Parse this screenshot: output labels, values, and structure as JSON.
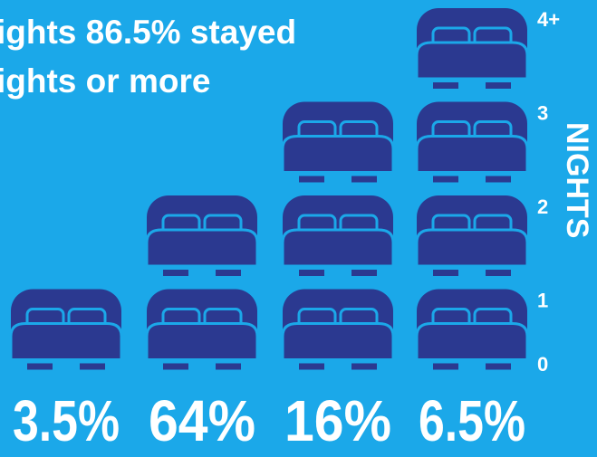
{
  "chart_data": {
    "type": "pictogram",
    "title_lines": [
      "ights 86.5% stayed",
      "ights or more"
    ],
    "ylabel": "NIGHTS",
    "nights": [
      1,
      2,
      3,
      4
    ],
    "shares": [
      "3.5%",
      "64%",
      "16%",
      "6.5%"
    ],
    "ylim": [
      0,
      4
    ],
    "yticks": [
      0,
      1,
      2,
      3,
      {
        "value": 4,
        "label": "4+"
      }
    ],
    "color": "#2b3990"
  }
}
